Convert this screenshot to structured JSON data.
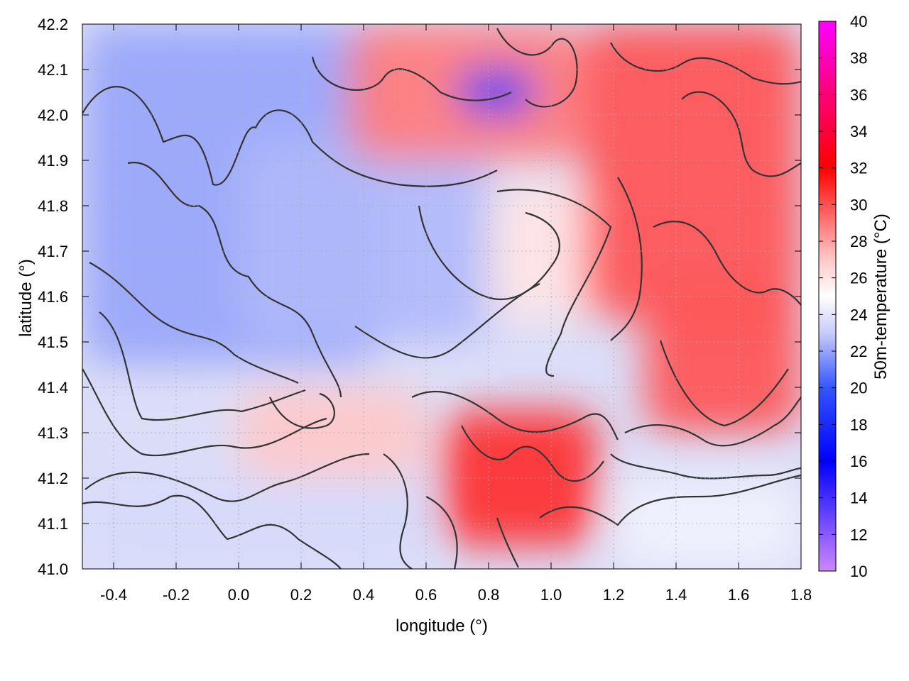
{
  "chart_data": {
    "type": "heatmap",
    "xlabel": "longitude (°)",
    "ylabel": "latitude (°)",
    "colorbar_label": "50m-temperature (°C)",
    "xlim": [
      -0.5,
      1.8
    ],
    "ylim": [
      41.0,
      42.2
    ],
    "x_ticks": [
      "-0.4",
      "-0.2",
      "0.0",
      "0.2",
      "0.4",
      "0.6",
      "0.8",
      "1.0",
      "1.2",
      "1.4",
      "1.6",
      "1.8"
    ],
    "y_ticks": [
      "41.0",
      "41.1",
      "41.2",
      "41.3",
      "41.4",
      "41.5",
      "41.6",
      "41.7",
      "41.8",
      "41.9",
      "42.0",
      "42.1",
      "42.2"
    ],
    "colorbar_range": [
      10,
      40
    ],
    "colorbar_ticks": [
      "10",
      "12",
      "14",
      "16",
      "18",
      "20",
      "22",
      "24",
      "26",
      "28",
      "30",
      "32",
      "34",
      "36",
      "38",
      "40"
    ],
    "colormap": [
      {
        "t": 10,
        "color": "#cc88ff"
      },
      {
        "t": 16,
        "color": "#0000ff"
      },
      {
        "t": 20,
        "color": "#3355ff"
      },
      {
        "t": 23,
        "color": "#c8ccf8"
      },
      {
        "t": 25,
        "color": "#ffffff"
      },
      {
        "t": 27,
        "color": "#ffc8c8"
      },
      {
        "t": 32,
        "color": "#ff0000"
      },
      {
        "t": 36,
        "color": "#ff0077"
      },
      {
        "t": 40,
        "color": "#ff00ff"
      }
    ],
    "grid": true,
    "contours": true,
    "regions": [
      {
        "name": "west-cool-plateau",
        "lon": [
          -0.5,
          0.45
        ],
        "lat": [
          41.45,
          42.2
        ],
        "temp": 22
      },
      {
        "name": "central-cool",
        "lon": [
          0.0,
          0.8
        ],
        "lat": [
          41.5,
          41.95
        ],
        "temp": 22.5
      },
      {
        "name": "central-warm-tongue",
        "lon": [
          0.8,
          1.15
        ],
        "lat": [
          41.55,
          41.85
        ],
        "temp": 26
      },
      {
        "name": "northeast-hot",
        "lon": [
          1.1,
          1.8
        ],
        "lat": [
          41.55,
          42.2
        ],
        "temp": 30
      },
      {
        "name": "north-hot-strip",
        "lon": [
          0.35,
          1.1
        ],
        "lat": [
          41.9,
          42.2
        ],
        "temp": 29
      },
      {
        "name": "east-hot",
        "lon": [
          1.3,
          1.8
        ],
        "lat": [
          41.3,
          41.6
        ],
        "temp": 30
      },
      {
        "name": "south-central-hot",
        "lon": [
          0.65,
          1.15
        ],
        "lat": [
          41.05,
          41.35
        ],
        "temp": 31
      },
      {
        "name": "ebro-warm",
        "lon": [
          0.0,
          0.6
        ],
        "lat": [
          41.2,
          41.4
        ],
        "temp": 27
      },
      {
        "name": "south-west-cool",
        "lon": [
          -0.5,
          0.6
        ],
        "lat": [
          41.0,
          41.2
        ],
        "temp": 23.5
      },
      {
        "name": "sea-southeast",
        "lon": [
          1.2,
          1.8
        ],
        "lat": [
          41.0,
          41.2
        ],
        "temp": 24.5
      },
      {
        "name": "north-cold-patch",
        "lon": [
          0.7,
          0.95
        ],
        "lat": [
          42.0,
          42.1
        ],
        "temp": 19
      }
    ]
  }
}
